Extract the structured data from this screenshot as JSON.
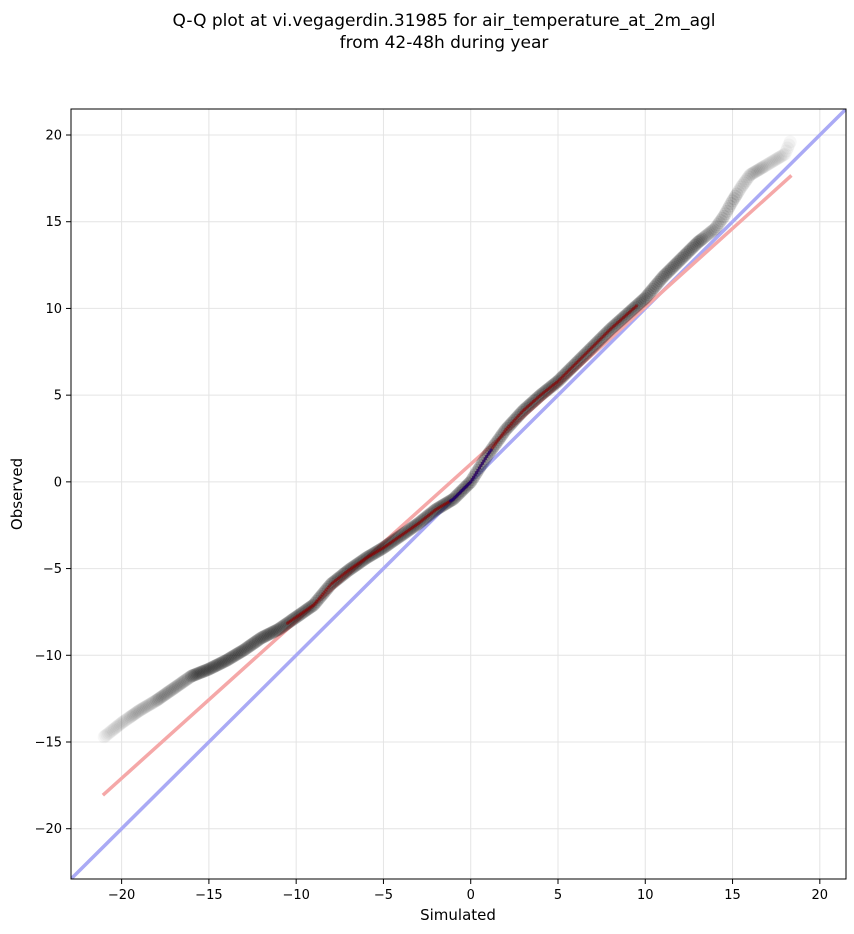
{
  "chart_data": {
    "type": "scatter",
    "title_line1": "Q-Q plot at vi.vegagerdin.31985 for air_temperature_at_2m_agl",
    "title_line2": "from 42-48h during year",
    "xlabel": "Simulated",
    "ylabel": "Observed",
    "xlim": [
      -22.9,
      21.5
    ],
    "ylim": [
      -22.9,
      21.5
    ],
    "xticks": [
      -20,
      -15,
      -10,
      -5,
      0,
      5,
      10,
      15,
      20
    ],
    "yticks": [
      -20,
      -15,
      -10,
      -5,
      0,
      5,
      10,
      15,
      20
    ],
    "xtick_labels": [
      "−20",
      "−15",
      "−10",
      "−5",
      "0",
      "5",
      "10",
      "15",
      "20"
    ],
    "ytick_labels": [
      "−20",
      "−15",
      "−10",
      "−5",
      "0",
      "5",
      "10",
      "15",
      "20"
    ],
    "grid": true,
    "reference_lines": [
      {
        "kind": "identity",
        "color": "#aaaaf5",
        "x": [
          -22.9,
          21.5
        ],
        "y": [
          -22.9,
          21.5
        ]
      },
      {
        "kind": "fit",
        "color": "#f5a8a8",
        "x": [
          -21.0,
          18.3
        ],
        "y": [
          -18.0,
          17.6
        ]
      }
    ],
    "quantile_anchors": {
      "x": [
        -21.0,
        -20.0,
        -19.0,
        -18.0,
        -17.0,
        -16.0,
        -15.0,
        -14.0,
        -13.0,
        -12.0,
        -11.0,
        -10.0,
        -9.0,
        -8.0,
        -7.0,
        -6.0,
        -5.0,
        -4.0,
        -3.0,
        -2.0,
        -1.0,
        0.0,
        1.0,
        2.0,
        3.0,
        4.0,
        5.0,
        6.0,
        7.0,
        8.0,
        9.0,
        10.0,
        11.0,
        12.0,
        13.0,
        14.0,
        14.5,
        15.0,
        15.5,
        16.0,
        17.0,
        18.0,
        18.3
      ],
      "y": [
        -14.7,
        -13.9,
        -13.2,
        -12.6,
        -11.9,
        -11.2,
        -10.8,
        -10.3,
        -9.7,
        -9.0,
        -8.5,
        -7.8,
        -7.1,
        -5.9,
        -5.1,
        -4.4,
        -3.8,
        -3.1,
        -2.4,
        -1.6,
        -1.0,
        0.0,
        1.6,
        3.0,
        4.1,
        5.0,
        5.8,
        6.8,
        7.8,
        8.8,
        9.7,
        10.6,
        11.8,
        12.8,
        13.8,
        14.6,
        15.3,
        16.2,
        17.0,
        17.7,
        18.3,
        18.9,
        19.6
      ]
    },
    "points_per_unit": 12,
    "point_color": "#000000",
    "segment_overlays": [
      {
        "color": "#8b0000",
        "x_range": [
          -10.5,
          9.5
        ]
      },
      {
        "color": "#00008b",
        "x_range": [
          -1.2,
          1.2
        ]
      }
    ]
  }
}
